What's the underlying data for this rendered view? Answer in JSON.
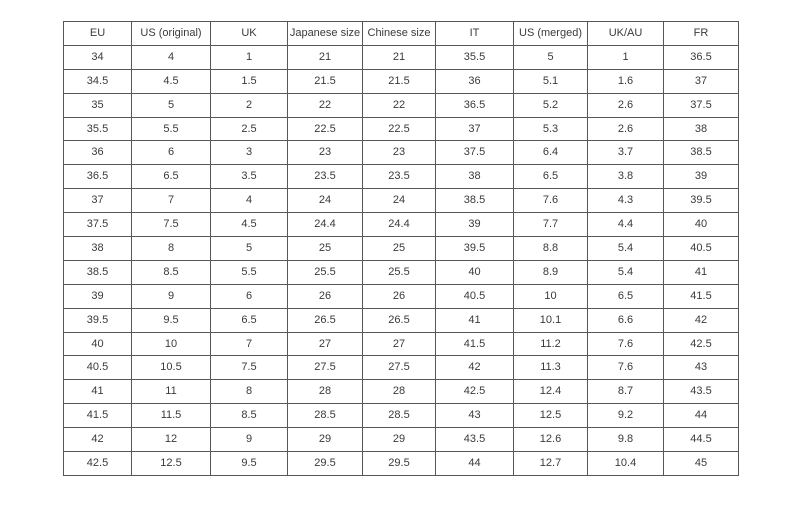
{
  "page": {
    "background_color": "#ffffff",
    "border_color": "#565656",
    "text_color": "#3a3a3a"
  },
  "chart_data": {
    "type": "table",
    "title": "",
    "columns": [
      "EU",
      "US (original)",
      "UK",
      "Japanese size",
      "Chinese size",
      "IT",
      "US (merged)",
      "UK/AU",
      "FR"
    ],
    "rows": [
      [
        "34",
        "4",
        "1",
        "21",
        "21",
        "35.5",
        "5",
        "1",
        "36.5"
      ],
      [
        "34.5",
        "4.5",
        "1.5",
        "21.5",
        "21.5",
        "36",
        "5.1",
        "1.6",
        "37"
      ],
      [
        "35",
        "5",
        "2",
        "22",
        "22",
        "36.5",
        "5.2",
        "2.6",
        "37.5"
      ],
      [
        "35.5",
        "5.5",
        "2.5",
        "22.5",
        "22.5",
        "37",
        "5.3",
        "2.6",
        "38"
      ],
      [
        "36",
        "6",
        "3",
        "23",
        "23",
        "37.5",
        "6.4",
        "3.7",
        "38.5"
      ],
      [
        "36.5",
        "6.5",
        "3.5",
        "23.5",
        "23.5",
        "38",
        "6.5",
        "3.8",
        "39"
      ],
      [
        "37",
        "7",
        "4",
        "24",
        "24",
        "38.5",
        "7.6",
        "4.3",
        "39.5"
      ],
      [
        "37.5",
        "7.5",
        "4.5",
        "24.4",
        "24.4",
        "39",
        "7.7",
        "4.4",
        "40"
      ],
      [
        "38",
        "8",
        "5",
        "25",
        "25",
        "39.5",
        "8.8",
        "5.4",
        "40.5"
      ],
      [
        "38.5",
        "8.5",
        "5.5",
        "25.5",
        "25.5",
        "40",
        "8.9",
        "5.4",
        "41"
      ],
      [
        "39",
        "9",
        "6",
        "26",
        "26",
        "40.5",
        "10",
        "6.5",
        "41.5"
      ],
      [
        "39.5",
        "9.5",
        "6.5",
        "26.5",
        "26.5",
        "41",
        "10.1",
        "6.6",
        "42"
      ],
      [
        "40",
        "10",
        "7",
        "27",
        "27",
        "41.5",
        "11.2",
        "7.6",
        "42.5"
      ],
      [
        "40.5",
        "10.5",
        "7.5",
        "27.5",
        "27.5",
        "42",
        "11.3",
        "7.6",
        "43"
      ],
      [
        "41",
        "11",
        "8",
        "28",
        "28",
        "42.5",
        "12.4",
        "8.7",
        "43.5"
      ],
      [
        "41.5",
        "11.5",
        "8.5",
        "28.5",
        "28.5",
        "43",
        "12.5",
        "9.2",
        "44"
      ],
      [
        "42",
        "12",
        "9",
        "29",
        "29",
        "43.5",
        "12.6",
        "9.8",
        "44.5"
      ],
      [
        "42.5",
        "12.5",
        "9.5",
        "29.5",
        "29.5",
        "44",
        "12.7",
        "10.4",
        "45"
      ]
    ]
  }
}
